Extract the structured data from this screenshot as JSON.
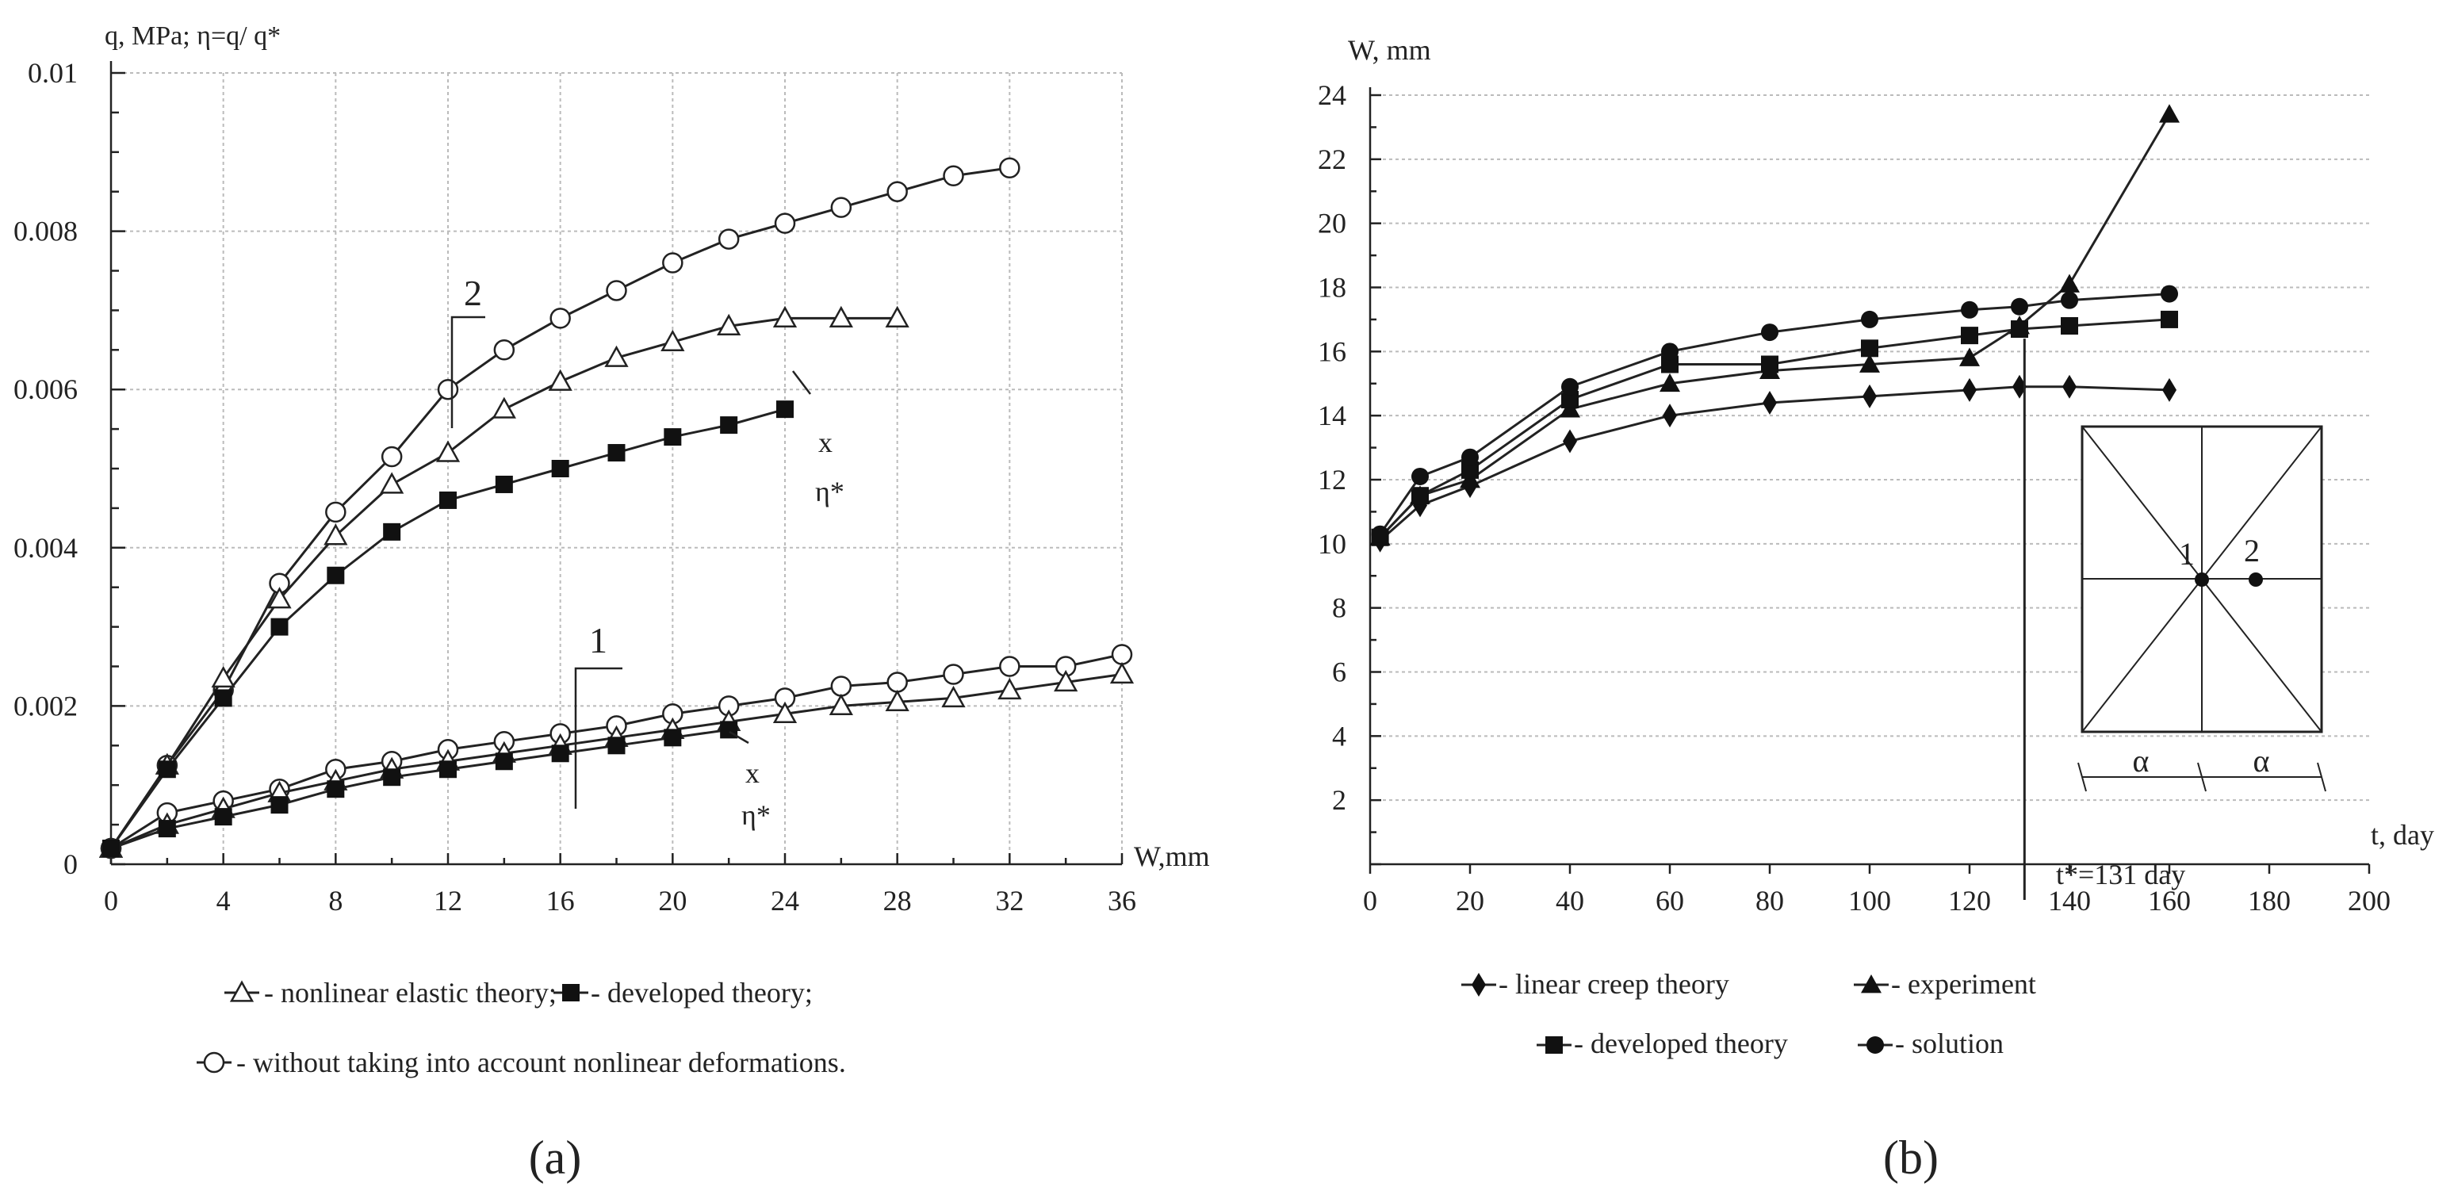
{
  "chart_data": [
    {
      "id": "a",
      "type": "line",
      "panel_label": "(a)",
      "ylabel": "q, MPa; η=q/ q*",
      "xlabel": "W,mm",
      "xlim": [
        0,
        36
      ],
      "ylim": [
        0,
        0.01
      ],
      "x_ticks": [
        0,
        4,
        8,
        12,
        16,
        20,
        24,
        28,
        32,
        36
      ],
      "y_ticks": [
        0,
        0.002,
        0.004,
        0.006,
        0.008,
        0.01
      ],
      "x_tick_labels": [
        "0",
        "4",
        "8",
        "12",
        "16",
        "20",
        "24",
        "28",
        "32",
        "36"
      ],
      "y_tick_labels": [
        "0",
        "0.002",
        "0.004",
        "0.006",
        "0.008",
        "0.01"
      ],
      "annotations": {
        "group2": "2",
        "group1": "1",
        "x_upper": "x",
        "eta_upper": "η*",
        "x_lower": "x",
        "eta_lower": "η*"
      },
      "series": [
        {
          "name": "circle-2",
          "marker": "circle-open",
          "x": [
            0,
            2,
            4,
            6,
            8,
            10,
            12,
            14,
            16,
            18,
            20,
            22,
            24,
            26,
            28,
            30,
            32
          ],
          "y": [
            0.0002,
            0.00125,
            0.0022,
            0.00355,
            0.00445,
            0.00515,
            0.006,
            0.0065,
            0.0069,
            0.00725,
            0.0076,
            0.0079,
            0.0081,
            0.0083,
            0.0085,
            0.0087,
            0.0088
          ]
        },
        {
          "name": "triangle-2",
          "marker": "triangle-open",
          "x": [
            0,
            2,
            4,
            6,
            8,
            10,
            12,
            14,
            16,
            18,
            20,
            22,
            24,
            26,
            28
          ],
          "y": [
            0.0002,
            0.00125,
            0.00235,
            0.00335,
            0.00415,
            0.0048,
            0.0052,
            0.00575,
            0.0061,
            0.0064,
            0.0066,
            0.0068,
            0.0069,
            0.0069,
            0.0069
          ]
        },
        {
          "name": "square-2",
          "marker": "square-filled",
          "tail_x": 26,
          "tail_y": 0.0059,
          "x": [
            0,
            2,
            4,
            6,
            8,
            10,
            12,
            14,
            16,
            18,
            20,
            22,
            24
          ],
          "y": [
            0.0002,
            0.0012,
            0.0021,
            0.003,
            0.00365,
            0.0042,
            0.0046,
            0.0048,
            0.005,
            0.0052,
            0.0054,
            0.00555,
            0.00575
          ]
        },
        {
          "name": "circle-1",
          "marker": "circle-open",
          "x": [
            0,
            2,
            4,
            6,
            8,
            10,
            12,
            14,
            16,
            18,
            20,
            22,
            24,
            26,
            28,
            30,
            32,
            34,
            36
          ],
          "y": [
            0.0002,
            0.00065,
            0.0008,
            0.00095,
            0.0012,
            0.0013,
            0.00145,
            0.00155,
            0.00165,
            0.00175,
            0.0019,
            0.002,
            0.0021,
            0.00225,
            0.0023,
            0.0024,
            0.0025,
            0.0025,
            0.00265
          ]
        },
        {
          "name": "triangle-1",
          "marker": "triangle-open",
          "x": [
            0,
            2,
            4,
            6,
            8,
            10,
            12,
            14,
            16,
            18,
            20,
            22,
            24,
            26,
            28,
            30,
            32,
            34,
            36
          ],
          "y": [
            0.0002,
            0.0005,
            0.0007,
            0.0009,
            0.00105,
            0.0012,
            0.0013,
            0.0014,
            0.0015,
            0.0016,
            0.0017,
            0.0018,
            0.0019,
            0.002,
            0.00205,
            0.0021,
            0.0022,
            0.0023,
            0.0024
          ]
        },
        {
          "name": "square-1",
          "marker": "square-filled",
          "tail_x": 25,
          "tail_y": 0.0018,
          "x": [
            0,
            2,
            4,
            6,
            8,
            10,
            12,
            14,
            16,
            18,
            20,
            22
          ],
          "y": [
            0.0002,
            0.00045,
            0.0006,
            0.00075,
            0.00095,
            0.0011,
            0.0012,
            0.0013,
            0.0014,
            0.0015,
            0.0016,
            0.0017
          ]
        }
      ],
      "legend": [
        {
          "marker": "triangle-open",
          "label": "- nonlinear elastic theory;"
        },
        {
          "marker": "square-filled",
          "label": "- developed theory;"
        },
        {
          "marker": "circle-open",
          "label": "- without taking into account nonlinear deformations."
        }
      ]
    },
    {
      "id": "b",
      "type": "line",
      "panel_label": "(b)",
      "ylabel": "W, mm",
      "xlabel": "t, day",
      "xlim": [
        0,
        200
      ],
      "ylim": [
        0,
        24
      ],
      "x_ticks": [
        0,
        20,
        40,
        60,
        80,
        100,
        120,
        140,
        160,
        180,
        200
      ],
      "y_ticks": [
        2,
        4,
        6,
        8,
        10,
        12,
        14,
        16,
        18,
        20,
        22,
        24
      ],
      "x_tick_labels": [
        "0",
        "20",
        "40",
        "60",
        "80",
        "100",
        "120",
        "140",
        "160",
        "180",
        "200"
      ],
      "y_tick_labels": [
        "2",
        "4",
        "6",
        "8",
        "10",
        "12",
        "14",
        "16",
        "18",
        "20",
        "22",
        "24"
      ],
      "vline": {
        "x": 131,
        "label": "t*=131 day"
      },
      "inset": {
        "point1": "1",
        "point2": "2",
        "span_left": "α",
        "span_right": "α"
      },
      "series": [
        {
          "name": "linear creep theory",
          "marker": "diamond-filled",
          "x": [
            2,
            10,
            20,
            40,
            60,
            80,
            100,
            120,
            130,
            140,
            160
          ],
          "y": [
            10.1,
            11.2,
            11.8,
            13.2,
            14.0,
            14.4,
            14.6,
            14.8,
            14.9,
            14.9,
            14.8
          ]
        },
        {
          "name": "experiment",
          "marker": "triangle-filled",
          "x": [
            2,
            10,
            20,
            40,
            60,
            80,
            100,
            120,
            130,
            140,
            160
          ],
          "y": [
            10.2,
            11.5,
            12.0,
            14.2,
            15.0,
            15.4,
            15.6,
            15.8,
            16.8,
            18.1,
            23.4
          ]
        },
        {
          "name": "developed theory",
          "marker": "square-filled",
          "x": [
            2,
            10,
            20,
            40,
            60,
            80,
            100,
            120,
            130,
            140,
            160
          ],
          "y": [
            10.2,
            11.5,
            12.3,
            14.5,
            15.6,
            15.6,
            16.1,
            16.5,
            16.7,
            16.8,
            17.0
          ]
        },
        {
          "name": "solution",
          "marker": "circle-filled",
          "x": [
            2,
            10,
            20,
            40,
            60,
            80,
            100,
            120,
            130,
            140,
            160
          ],
          "y": [
            10.3,
            12.1,
            12.7,
            14.9,
            16.0,
            16.6,
            17.0,
            17.3,
            17.4,
            17.6,
            17.8
          ]
        }
      ],
      "legend": [
        {
          "marker": "diamond-filled",
          "label": "- linear creep theory"
        },
        {
          "marker": "triangle-filled",
          "label": "- experiment"
        },
        {
          "marker": "square-filled",
          "label": "- developed theory"
        },
        {
          "marker": "circle-filled",
          "label": "- solution"
        }
      ]
    }
  ]
}
